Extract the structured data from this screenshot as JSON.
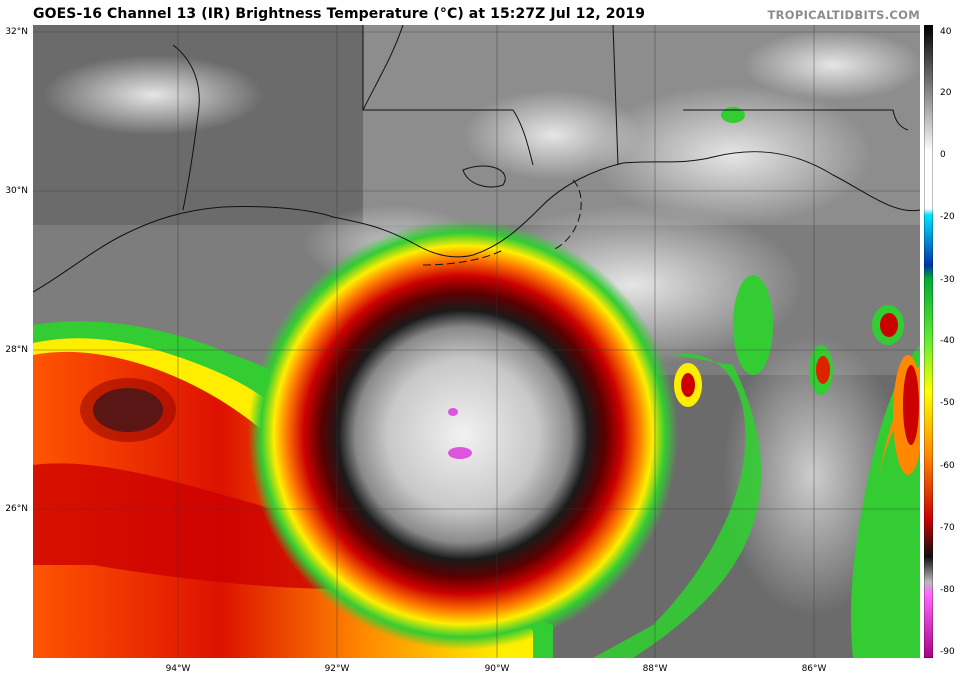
{
  "title": "GOES-16 Channel 13 (IR) Brightness Temperature (°C) at 15:27Z Jul 12, 2019",
  "credit": "TROPICALTIDBITS.COM",
  "lat_labels": [
    "32°N",
    "30°N",
    "28°N",
    "26°N"
  ],
  "lon_labels": [
    "94°W",
    "92°W",
    "90°W",
    "88°W",
    "86°W"
  ],
  "colorbar": {
    "labels": [
      "40",
      "20",
      "0",
      "-20",
      "-30",
      "-40",
      "-50",
      "-60",
      "-70",
      "-80",
      "-90"
    ],
    "colors": [
      "#000000",
      "#ffffff",
      "#00e5ff",
      "#0033aa",
      "#00cc44",
      "#ffff00",
      "#ff8800",
      "#cc0000",
      "#111111",
      "#c0c0c0",
      "#ff66ff",
      "#aa0088"
    ]
  },
  "map": {
    "storm_center_lat": "27.1°N",
    "storm_center_lon": "90.5°W"
  }
}
